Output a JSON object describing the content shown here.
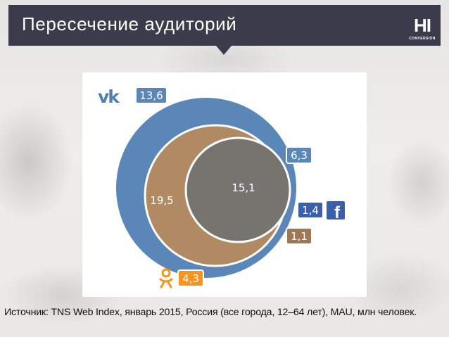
{
  "header": {
    "title": "Пересечение аудиторий"
  },
  "logo": {
    "text": "HI",
    "sub": "CONVERSION"
  },
  "diagram": {
    "vk_only": "13,6",
    "vk_fb": "6,3",
    "vk_ok": "19,5",
    "vk_ok_fb": "15,1",
    "fb_only": "1,4",
    "ok_fb": "1,1",
    "ok_only": "4,3",
    "icons": [
      "vk-logo",
      "facebook-logo",
      "odnoklassniki-logo"
    ],
    "colors": {
      "vk": "#5b86b8",
      "ok": "#f7941d",
      "intersection_vk_ok": "#b08a62",
      "intersection_all": "#777470",
      "fb_label": "#3b5fa8",
      "ok_fb_label": "#a07754"
    }
  },
  "footer": {
    "source": "Источник: TNS Web Index, январь 2015, Россия (все города, 12–64 лет), MAU, млн человек."
  }
}
